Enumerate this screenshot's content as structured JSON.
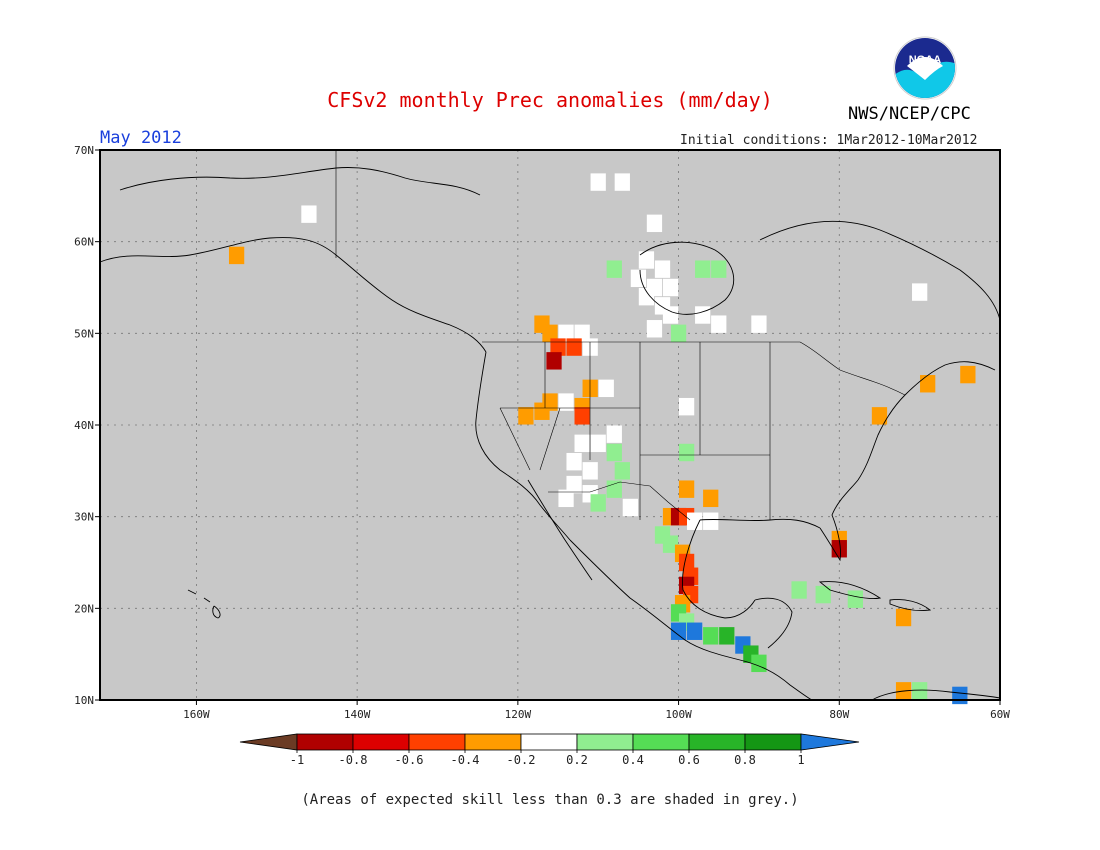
{
  "header": {
    "title": "CFSv2 monthly Prec anomalies (mm/day)",
    "month": "May 2012",
    "agency": "NWS/NCEP/CPC",
    "initial_conditions": "Initial conditions: 1Mar2012-10Mar2012",
    "logo_text": "NOAA"
  },
  "map": {
    "lon_range": [
      -172,
      -60
    ],
    "lat_range": [
      10,
      70
    ],
    "lon_ticks": [
      {
        "lon": -160,
        "label": "160W"
      },
      {
        "lon": -140,
        "label": "140W"
      },
      {
        "lon": -120,
        "label": "120W"
      },
      {
        "lon": -100,
        "label": "100W"
      },
      {
        "lon": -80,
        "label": "80W"
      },
      {
        "lon": -60,
        "label": "60W"
      }
    ],
    "lat_ticks": [
      {
        "lat": 70,
        "label": "70N"
      },
      {
        "lat": 60,
        "label": "60N"
      },
      {
        "lat": 50,
        "label": "50N"
      },
      {
        "lat": 40,
        "label": "40N"
      },
      {
        "lat": 30,
        "label": "30N"
      },
      {
        "lat": 20,
        "label": "20N"
      },
      {
        "lat": 10,
        "label": "10N"
      }
    ],
    "background_color": "#c8c8c8",
    "grid": true,
    "anomaly_cells": [
      {
        "lon": -110,
        "lat": 66.5,
        "cat": "white"
      },
      {
        "lon": -107,
        "lat": 66.5,
        "cat": "white"
      },
      {
        "lon": -146,
        "lat": 63,
        "cat": "white"
      },
      {
        "lon": -103,
        "lat": 62,
        "cat": "white"
      },
      {
        "lon": -155,
        "lat": 58.5,
        "cat": "orange"
      },
      {
        "lon": -104,
        "lat": 58,
        "cat": "white"
      },
      {
        "lon": -102,
        "lat": 57,
        "cat": "white"
      },
      {
        "lon": -105,
        "lat": 56,
        "cat": "white"
      },
      {
        "lon": -103,
        "lat": 55,
        "cat": "white"
      },
      {
        "lon": -101,
        "lat": 55,
        "cat": "white"
      },
      {
        "lon": -104,
        "lat": 54,
        "cat": "white"
      },
      {
        "lon": -102,
        "lat": 53,
        "cat": "white"
      },
      {
        "lon": -101,
        "lat": 52,
        "cat": "white"
      },
      {
        "lon": -97,
        "lat": 57,
        "cat": "lightgreen"
      },
      {
        "lon": -95,
        "lat": 57,
        "cat": "lightgreen"
      },
      {
        "lon": -108,
        "lat": 57,
        "cat": "lightgreen"
      },
      {
        "lon": -97,
        "lat": 52,
        "cat": "white"
      },
      {
        "lon": -95,
        "lat": 51,
        "cat": "white"
      },
      {
        "lon": -90,
        "lat": 51,
        "cat": "white"
      },
      {
        "lon": -103,
        "lat": 50.5,
        "cat": "white"
      },
      {
        "lon": -100,
        "lat": 50,
        "cat": "lightgreen"
      },
      {
        "lon": -70,
        "lat": 54.5,
        "cat": "white"
      },
      {
        "lon": -117,
        "lat": 51,
        "cat": "orange"
      },
      {
        "lon": -116,
        "lat": 50,
        "cat": "orange"
      },
      {
        "lon": -114,
        "lat": 50,
        "cat": "white"
      },
      {
        "lon": -112,
        "lat": 50,
        "cat": "white"
      },
      {
        "lon": -115,
        "lat": 48.5,
        "cat": "redorange"
      },
      {
        "lon": -113,
        "lat": 48.5,
        "cat": "redorange"
      },
      {
        "lon": -111,
        "lat": 48.5,
        "cat": "white"
      },
      {
        "lon": -115.5,
        "lat": 47,
        "cat": "red"
      },
      {
        "lon": -111,
        "lat": 44,
        "cat": "orange"
      },
      {
        "lon": -112,
        "lat": 42,
        "cat": "orange"
      },
      {
        "lon": -112,
        "lat": 41,
        "cat": "redorange"
      },
      {
        "lon": -109,
        "lat": 44,
        "cat": "white"
      },
      {
        "lon": -116,
        "lat": 42.5,
        "cat": "orange"
      },
      {
        "lon": -117,
        "lat": 41.5,
        "cat": "orange"
      },
      {
        "lon": -119,
        "lat": 41,
        "cat": "orange"
      },
      {
        "lon": -114,
        "lat": 42.5,
        "cat": "white"
      },
      {
        "lon": -99,
        "lat": 42,
        "cat": "white"
      },
      {
        "lon": -112,
        "lat": 38,
        "cat": "white"
      },
      {
        "lon": -110,
        "lat": 38,
        "cat": "white"
      },
      {
        "lon": -108,
        "lat": 39,
        "cat": "white"
      },
      {
        "lon": -113,
        "lat": 36,
        "cat": "white"
      },
      {
        "lon": -111,
        "lat": 35,
        "cat": "white"
      },
      {
        "lon": -113,
        "lat": 33.5,
        "cat": "white"
      },
      {
        "lon": -111,
        "lat": 32.5,
        "cat": "white"
      },
      {
        "lon": -114,
        "lat": 32,
        "cat": "white"
      },
      {
        "lon": -108,
        "lat": 37,
        "cat": "lightgreen"
      },
      {
        "lon": -107,
        "lat": 35,
        "cat": "lightgreen"
      },
      {
        "lon": -108,
        "lat": 33,
        "cat": "lightgreen"
      },
      {
        "lon": -110,
        "lat": 31.5,
        "cat": "lightgreen"
      },
      {
        "lon": -106,
        "lat": 31,
        "cat": "white"
      },
      {
        "lon": -99,
        "lat": 37,
        "cat": "lightgreen"
      },
      {
        "lon": -99,
        "lat": 33,
        "cat": "orange"
      },
      {
        "lon": -96,
        "lat": 32,
        "cat": "orange"
      },
      {
        "lon": -101,
        "lat": 30,
        "cat": "orange"
      },
      {
        "lon": -100,
        "lat": 30,
        "cat": "red"
      },
      {
        "lon": -99,
        "lat": 30,
        "cat": "redorange"
      },
      {
        "lon": -98,
        "lat": 29.5,
        "cat": "white"
      },
      {
        "lon": -96,
        "lat": 29.5,
        "cat": "white"
      },
      {
        "lon": -102,
        "lat": 28,
        "cat": "lightgreen"
      },
      {
        "lon": -101,
        "lat": 27,
        "cat": "lightgreen"
      },
      {
        "lon": -99.5,
        "lat": 26,
        "cat": "orange"
      },
      {
        "lon": -99,
        "lat": 25,
        "cat": "redorange"
      },
      {
        "lon": -98.5,
        "lat": 23.5,
        "cat": "redorange"
      },
      {
        "lon": -99,
        "lat": 22.5,
        "cat": "red"
      },
      {
        "lon": -98.5,
        "lat": 21.5,
        "cat": "redorange"
      },
      {
        "lon": -99.5,
        "lat": 20.5,
        "cat": "orange"
      },
      {
        "lon": -100,
        "lat": 19.5,
        "cat": "green"
      },
      {
        "lon": -99,
        "lat": 18.5,
        "cat": "lightgreen"
      },
      {
        "lon": -100,
        "lat": 17.5,
        "cat": "blue"
      },
      {
        "lon": -98,
        "lat": 17.5,
        "cat": "blue"
      },
      {
        "lon": -96,
        "lat": 17,
        "cat": "green"
      },
      {
        "lon": -94,
        "lat": 17,
        "cat": "darkgreen"
      },
      {
        "lon": -92,
        "lat": 16,
        "cat": "blue"
      },
      {
        "lon": -91,
        "lat": 15,
        "cat": "darkgreen"
      },
      {
        "lon": -90,
        "lat": 14,
        "cat": "green"
      },
      {
        "lon": -80,
        "lat": 27.5,
        "cat": "orange"
      },
      {
        "lon": -80,
        "lat": 26.5,
        "cat": "red"
      },
      {
        "lon": -85,
        "lat": 22,
        "cat": "lightgreen"
      },
      {
        "lon": -82,
        "lat": 21.5,
        "cat": "lightgreen"
      },
      {
        "lon": -78,
        "lat": 21,
        "cat": "lightgreen"
      },
      {
        "lon": -72,
        "lat": 19,
        "cat": "orange"
      },
      {
        "lon": -75,
        "lat": 41,
        "cat": "orange"
      },
      {
        "lon": -69,
        "lat": 44.5,
        "cat": "orange"
      },
      {
        "lon": -64,
        "lat": 45.5,
        "cat": "orange"
      },
      {
        "lon": -72,
        "lat": 11,
        "cat": "orange"
      },
      {
        "lon": -70,
        "lat": 11,
        "cat": "lightgreen"
      },
      {
        "lon": -65,
        "lat": 10.5,
        "cat": "blue"
      }
    ]
  },
  "colorbar": {
    "labels": [
      "-1",
      "-0.8",
      "-0.6",
      "-0.4",
      "-0.2",
      "0.2",
      "0.4",
      "0.6",
      "0.8",
      "1"
    ],
    "left_arrow_color": "#6b3b24",
    "right_arrow_color": "#1e78dc",
    "box_colors": [
      "#b00000",
      "#dd0000",
      "#ff4000",
      "#ff9c00",
      "#ffffff",
      "#90ee90",
      "#55dd55",
      "#28b428",
      "#149614"
    ]
  },
  "category_colors": {
    "red": "#b00000",
    "redorange": "#ff4000",
    "orange": "#ff9c00",
    "white": "#ffffff",
    "lightgreen": "#90ee90",
    "green": "#55dd55",
    "darkgreen": "#28b428",
    "blue": "#1e78dc"
  },
  "footnote": "(Areas of expected skill less than 0.3 are shaded in grey.)"
}
